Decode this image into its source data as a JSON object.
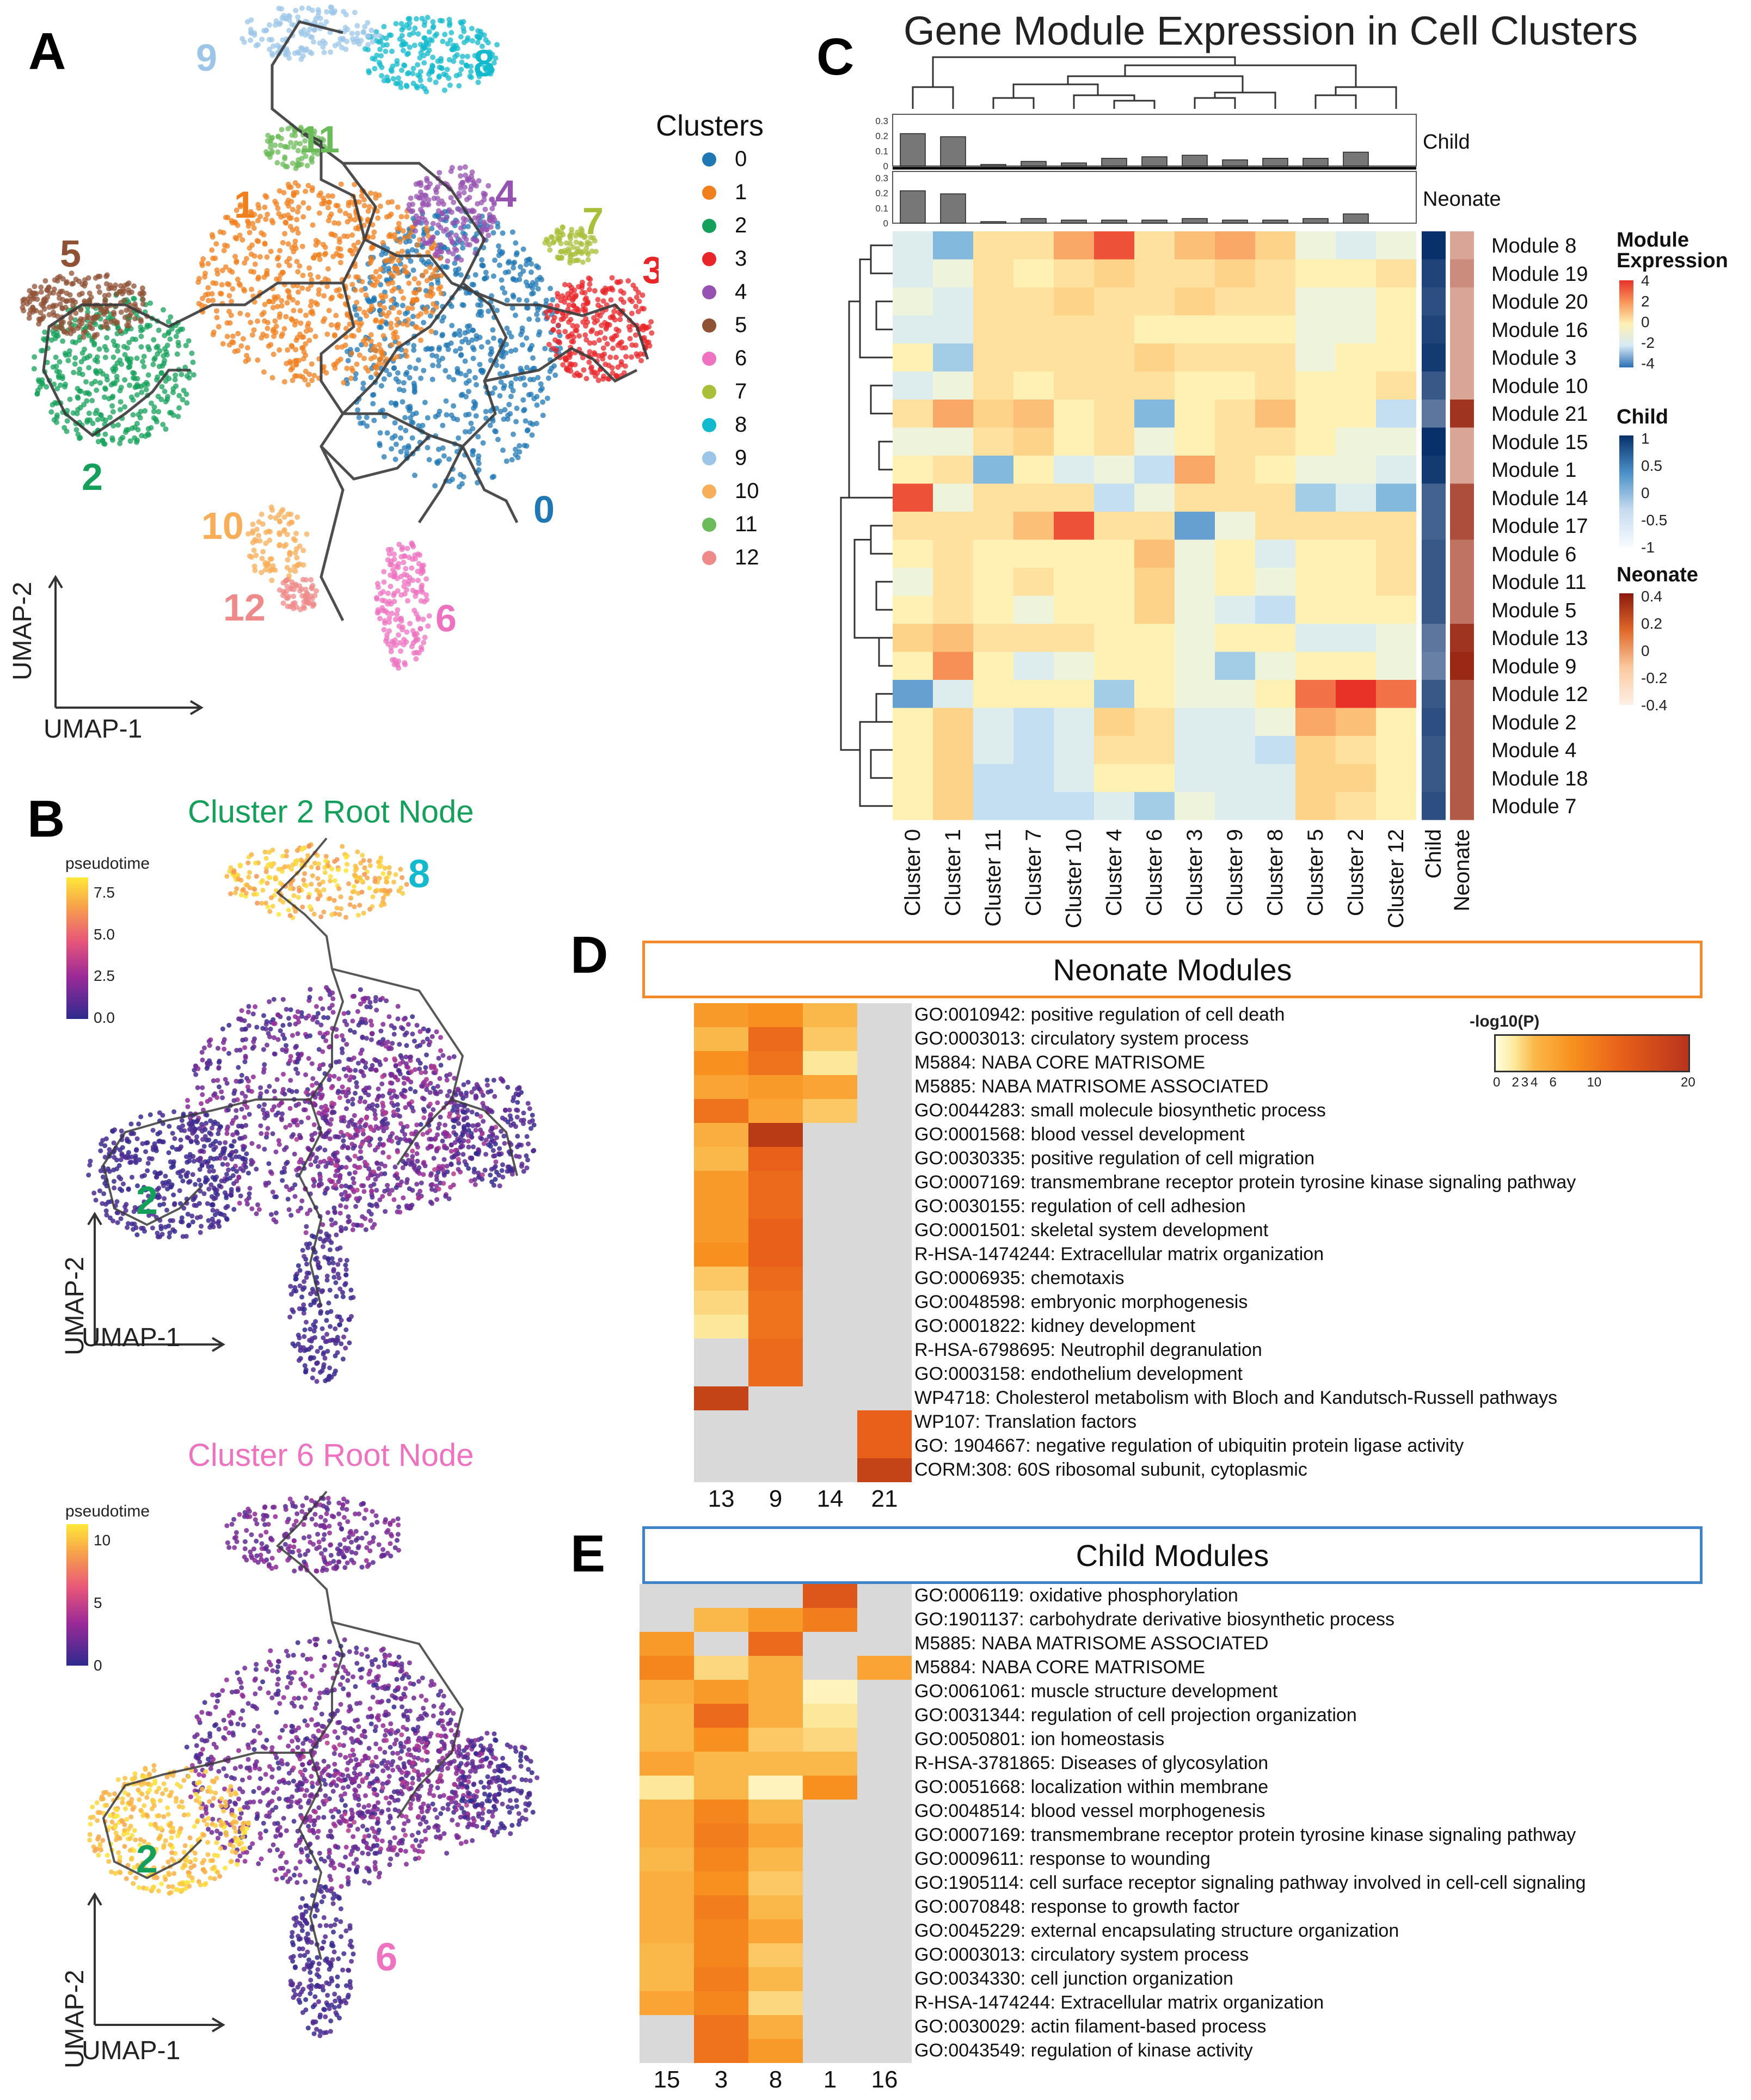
{
  "panels": {
    "a": "A",
    "b": "B",
    "c": "C",
    "d": "D",
    "e": "E"
  },
  "panel_a": {
    "legend_title": "Clusters",
    "clusters": [
      {
        "label": "0",
        "color": "#1f77b4"
      },
      {
        "label": "1",
        "color": "#f07f1d"
      },
      {
        "label": "2",
        "color": "#14a05a"
      },
      {
        "label": "3",
        "color": "#e8262a"
      },
      {
        "label": "4",
        "color": "#9552b0"
      },
      {
        "label": "5",
        "color": "#8f5235"
      },
      {
        "label": "6",
        "color": "#ee72c0"
      },
      {
        "label": "7",
        "color": "#a9bf3a"
      },
      {
        "label": "8",
        "color": "#13b9cc"
      },
      {
        "label": "9",
        "color": "#9cc5e8"
      },
      {
        "label": "10",
        "color": "#f8ad58"
      },
      {
        "label": "11",
        "color": "#6cbb5a"
      },
      {
        "label": "12",
        "color": "#ef8a8a"
      }
    ],
    "axis_x": "UMAP-1",
    "axis_y": "UMAP-2"
  },
  "panel_b": {
    "top_title": "Cluster 2 Root Node",
    "top_title_color": "#14a05a",
    "top_legend_title": "pseudotime",
    "top_ticks": [
      "7.5",
      "5.0",
      "2.5",
      "0.0"
    ],
    "top_labels": {
      "a": "8",
      "b": "2"
    },
    "bottom_title": "Cluster 6 Root Node",
    "bottom_title_color": "#ee72c0",
    "bottom_legend_title": "pseudotime",
    "bottom_ticks": [
      "10",
      "5",
      "0"
    ],
    "bottom_labels": {
      "a": "2",
      "b": "6"
    },
    "axis_x": "UMAP-1",
    "axis_y": "UMAP-2"
  },
  "panel_c": {
    "title": "Gene Module Expression in Cell Clusters",
    "bar_labels": {
      "child": "Child",
      "neonate": "Neonate"
    },
    "bar_ticks": [
      "0.3",
      "0.2",
      "0.1",
      "0"
    ],
    "legend": {
      "expr_title_1": "Module",
      "expr_title_2": "Expression",
      "expr_ticks": [
        "4",
        "2",
        "0",
        "-2",
        "-4"
      ],
      "child_title": "Child",
      "child_ticks": [
        "1",
        "0.5",
        "0",
        "-0.5",
        "-1"
      ],
      "neonate_title": "Neonate",
      "neonate_ticks": [
        "0.4",
        "0.2",
        "0",
        "-0.2",
        "-0.4"
      ]
    }
  },
  "panel_d": {
    "title": "Neonate Modules",
    "legend_title": "-log10(P)",
    "legend_ticks": [
      "0",
      "2",
      "3",
      "4",
      "6",
      "10",
      "20"
    ],
    "terms": [
      "GO:0010942: positive regulation of cell death",
      "GO:0003013: circulatory system process",
      "M5884: NABA CORE MATRISOME",
      "M5885: NABA MATRISOME ASSOCIATED",
      "GO:0044283: small molecule biosynthetic process",
      "GO:0001568: blood vessel development",
      "GO:0030335: positive regulation of cell migration",
      "GO:0007169: transmembrane receptor protein tyrosine kinase signaling pathway",
      "GO:0030155: regulation of cell adhesion",
      "GO:0001501: skeletal system development",
      "R-HSA-1474244: Extracellular matrix organization",
      "GO:0006935: chemotaxis",
      "GO:0048598: embryonic morphogenesis",
      "GO:0001822: kidney development",
      "R-HSA-6798695: Neutrophil degranulation",
      "GO:0003158: endothelium development",
      "WP4718: Cholesterol metabolism with Bloch and Kandutsch-Russell pathways",
      "WP107: Translation factors",
      "GO: 1904667: negative regulation of ubiquitin protein ligase activity",
      "CORM:308: 60S ribosomal subunit, cytoplasmic"
    ],
    "columns": [
      "13",
      "9",
      "14",
      "21"
    ]
  },
  "panel_e": {
    "title": "Child Modules",
    "terms": [
      "GO:0006119: oxidative phosphorylation",
      "GO:1901137: carbohydrate derivative biosynthetic process",
      "M5885: NABA MATRISOME ASSOCIATED",
      "M5884: NABA CORE MATRISOME",
      "GO:0061061: muscle structure development",
      "GO:0031344: regulation of cell projection organization",
      "GO:0050801: ion homeostasis",
      "R-HSA-3781865: Diseases of glycosylation",
      "GO:0051668: localization within membrane",
      "GO:0048514: blood vessel morphogenesis",
      "GO:0007169: transmembrane receptor protein tyrosine kinase signaling pathway",
      "GO:0009611: response to wounding",
      "GO:1905114: cell surface receptor signaling pathway involved in cell-cell signaling",
      "GO:0070848: response to growth factor",
      "GO:0045229: external encapsulating structure organization",
      "GO:0003013: circulatory system process",
      "GO:0034330: cell junction organization",
      "R-HSA-1474244: Extracellular matrix organization",
      "GO:0030029: actin filament-based process",
      "GO:0043549: regulation of kinase activity"
    ],
    "columns": [
      "15",
      "3",
      "8",
      "1",
      "16"
    ]
  },
  "chart_data": [
    {
      "type": "heatmap",
      "title": "Gene Module Expression in Cell Clusters",
      "x": [
        "Cluster 0",
        "Cluster 1",
        "Cluster 11",
        "Cluster 7",
        "Cluster 10",
        "Cluster 4",
        "Cluster 6",
        "Cluster 3",
        "Cluster 9",
        "Cluster 8",
        "Cluster 5",
        "Cluster 2",
        "Cluster 12"
      ],
      "y": [
        "Module 8",
        "Module 19",
        "Module 20",
        "Module 16",
        "Module 3",
        "Module 10",
        "Module 21",
        "Module 15",
        "Module 1",
        "Module 14",
        "Module 17",
        "Module 6",
        "Module 11",
        "Module 5",
        "Module 13",
        "Module 9",
        "Module 12",
        "Module 2",
        "Module 4",
        "Module 18",
        "Module 7"
      ],
      "values": [
        [
          -1,
          -2.5,
          0.5,
          0.5,
          2,
          3.5,
          0.5,
          1.5,
          2,
          1,
          -0.5,
          -1,
          -0.5
        ],
        [
          -1,
          -0.5,
          0.5,
          0,
          0.5,
          1,
          0.5,
          0.5,
          1,
          0.5,
          0,
          0,
          0.5
        ],
        [
          -0.5,
          -1,
          0.5,
          0.5,
          1,
          0.5,
          0.5,
          1,
          0.5,
          0.5,
          -0.5,
          -0.5,
          0
        ],
        [
          -1,
          -1,
          0.5,
          0.5,
          0.5,
          0.5,
          0,
          0,
          0,
          0,
          -0.5,
          -0.5,
          0
        ],
        [
          0,
          -2,
          0.5,
          0.5,
          0.5,
          0.5,
          1,
          0.5,
          0.5,
          0.5,
          -0.5,
          0,
          0
        ],
        [
          -1,
          -0.5,
          0.5,
          0,
          0.5,
          0.5,
          0.5,
          0,
          0,
          0.5,
          0,
          0,
          0.5
        ],
        [
          0.5,
          2,
          1,
          1.5,
          0,
          0.5,
          -2.5,
          0,
          0.5,
          1.5,
          0,
          0,
          -1.5
        ],
        [
          -0.5,
          -0.5,
          0.5,
          1,
          0,
          0.5,
          -0.5,
          0,
          0.5,
          0.5,
          0,
          -0.5,
          -0.5
        ],
        [
          0,
          0.5,
          -2.5,
          0,
          -1,
          -0.5,
          -1.5,
          2,
          0.5,
          0,
          -0.5,
          -0.5,
          -1
        ],
        [
          3.5,
          -0.5,
          0.5,
          0.5,
          0.5,
          -1.5,
          -0.5,
          0.5,
          0.5,
          0.5,
          -2,
          -1,
          -2.5
        ],
        [
          0.5,
          0.5,
          0.5,
          1.5,
          3.5,
          0.5,
          0.5,
          -3,
          -0.5,
          0.5,
          0.5,
          0.5,
          0.5
        ],
        [
          0,
          0.5,
          0,
          0,
          0,
          0,
          1.5,
          -0.5,
          0,
          -1,
          0,
          0,
          0.5
        ],
        [
          -0.5,
          0.5,
          0,
          0.5,
          0,
          0,
          1,
          -0.5,
          0,
          -0.5,
          0,
          0,
          0.5
        ],
        [
          0,
          0.5,
          0,
          -0.5,
          0,
          0,
          1,
          -0.5,
          -1,
          -1.5,
          0,
          0,
          0
        ],
        [
          1,
          1.5,
          0.5,
          0.5,
          0.5,
          0,
          0,
          -0.5,
          0,
          0,
          -1,
          -1,
          -0.5
        ],
        [
          0,
          2.5,
          0,
          -1,
          -0.5,
          0,
          0,
          -0.5,
          -2,
          -0.5,
          0,
          0,
          -0.5
        ],
        [
          -3,
          -1,
          0,
          0,
          0,
          -2,
          0,
          -0.5,
          -0.5,
          0,
          3,
          4,
          3
        ],
        [
          0,
          1,
          -1,
          -1.5,
          -1,
          1,
          0.5,
          -1,
          -1,
          -0.5,
          2,
          1.5,
          0
        ],
        [
          0,
          1,
          -1,
          -1.5,
          -1,
          0.5,
          0.5,
          -1,
          -1,
          -1.5,
          1,
          0.5,
          0
        ],
        [
          0,
          1,
          -1.5,
          -1.5,
          -1,
          0,
          0,
          -1,
          -1,
          -1,
          1,
          1,
          0
        ],
        [
          0,
          1,
          -1.5,
          -1.5,
          -1.5,
          -1,
          -2,
          -0.5,
          -1,
          -1,
          1,
          0.5,
          0
        ]
      ],
      "annotations": {
        "Child": [
          -1,
          -0.8,
          -0.7,
          -0.8,
          -0.9,
          -0.6,
          -0.3,
          -1,
          -0.9,
          -0.5,
          -0.5,
          -0.6,
          -0.6,
          -0.6,
          -0.3,
          -0.2,
          -0.6,
          -0.7,
          -0.6,
          -0.6,
          -0.7
        ],
        "Neonate": [
          -0.1,
          0,
          -0.1,
          -0.1,
          -0.1,
          -0.1,
          0.35,
          -0.1,
          -0.1,
          0.25,
          0.25,
          0.1,
          0.1,
          0.1,
          0.35,
          0.4,
          0.2,
          0.2,
          0.2,
          0.2,
          0.2
        ]
      },
      "bar_child": [
        0.21,
        0.19,
        0.01,
        0.03,
        0.02,
        0.05,
        0.06,
        0.07,
        0.04,
        0.05,
        0.05,
        0.09,
        0
      ],
      "bar_neonate": [
        0.21,
        0.19,
        0.01,
        0.03,
        0.02,
        0.02,
        0.02,
        0.03,
        0.02,
        0.02,
        0.03,
        0.06,
        0
      ],
      "colorbar_range": [
        -4,
        4
      ]
    },
    {
      "type": "heatmap",
      "title": "Neonate Modules",
      "x": [
        "13",
        "9",
        "14",
        "21"
      ],
      "y_count": 20,
      "values": [
        [
          8,
          9,
          5,
          null
        ],
        [
          5,
          13,
          4,
          null
        ],
        [
          9,
          12,
          2,
          null
        ],
        [
          7,
          8,
          7,
          null
        ],
        [
          12,
          7,
          4,
          null
        ],
        [
          6,
          18,
          null,
          null
        ],
        [
          5,
          14,
          null,
          null
        ],
        [
          8,
          13,
          null,
          null
        ],
        [
          8,
          13,
          null,
          null
        ],
        [
          8,
          14,
          null,
          null
        ],
        [
          9,
          14,
          null,
          null
        ],
        [
          4,
          13,
          null,
          null
        ],
        [
          3,
          12,
          null,
          null
        ],
        [
          2,
          12,
          null,
          null
        ],
        [
          null,
          13,
          null,
          null
        ],
        [
          null,
          13,
          null,
          null
        ],
        [
          17,
          null,
          null,
          null
        ],
        [
          null,
          null,
          null,
          14
        ],
        [
          null,
          null,
          null,
          14
        ],
        [
          null,
          null,
          null,
          17
        ]
      ],
      "colorbar_ticks": [
        0,
        2,
        3,
        4,
        6,
        10,
        20
      ]
    },
    {
      "type": "heatmap",
      "title": "Child Modules",
      "x": [
        "15",
        "3",
        "8",
        "1",
        "16"
      ],
      "y_count": 20,
      "values": [
        [
          null,
          null,
          null,
          15,
          null
        ],
        [
          null,
          5,
          8,
          11,
          null
        ],
        [
          8,
          null,
          13,
          null,
          null
        ],
        [
          10,
          3,
          6,
          null,
          7
        ],
        [
          6,
          8,
          6,
          1,
          null
        ],
        [
          5,
          13,
          6,
          2,
          null
        ],
        [
          5,
          9,
          4,
          3,
          null
        ],
        [
          7,
          5,
          5,
          5,
          null
        ],
        [
          2,
          5,
          1,
          9,
          null
        ],
        [
          6,
          10,
          5,
          null,
          null
        ],
        [
          6,
          11,
          7,
          null,
          null
        ],
        [
          5,
          10,
          5,
          null,
          null
        ],
        [
          6,
          9,
          4,
          null,
          null
        ],
        [
          6,
          11,
          5,
          null,
          null
        ],
        [
          6,
          10,
          7,
          null,
          null
        ],
        [
          5,
          10,
          4,
          null,
          null
        ],
        [
          5,
          11,
          5,
          null,
          null
        ],
        [
          7,
          10,
          3,
          null,
          null
        ],
        [
          null,
          12,
          6,
          null,
          null
        ],
        [
          null,
          12,
          8,
          null,
          null
        ]
      ]
    }
  ]
}
